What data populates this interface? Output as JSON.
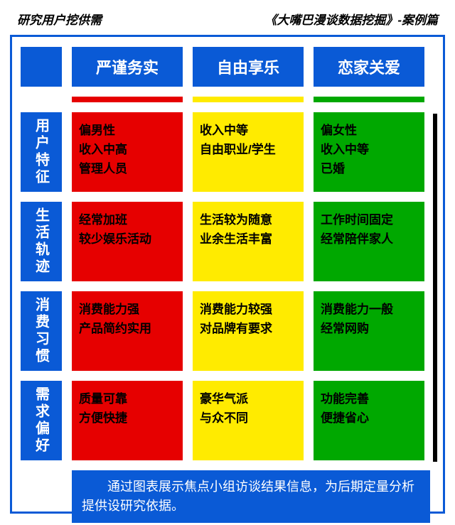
{
  "header": {
    "left": "研究用户挖供需",
    "right": "《大嘴巴漫谈数据挖掘》-案例篇"
  },
  "colors": {
    "blue": "#0a5ad6",
    "red": "#e60000",
    "yellow": "#ffeb00",
    "green": "#00a800",
    "black": "#000000",
    "white": "#ffffff"
  },
  "columns": [
    {
      "label": "严谨务实",
      "color": "#e60000"
    },
    {
      "label": "自由享乐",
      "color": "#ffeb00"
    },
    {
      "label": "恋家关爱",
      "color": "#00a800"
    }
  ],
  "rows": [
    {
      "label": "用户特征",
      "cells": [
        [
          "偏男性",
          "收入中高",
          "管理人员"
        ],
        [
          "收入中等",
          "自由职业/学生"
        ],
        [
          "偏女性",
          "收入中等",
          "已婚"
        ]
      ]
    },
    {
      "label": "生活轨迹",
      "cells": [
        [
          "经常加班",
          "较少娱乐活动"
        ],
        [
          "生活较为随意",
          "业余生活丰富"
        ],
        [
          "工作时间固定",
          "经常陪伴家人"
        ]
      ]
    },
    {
      "label": "消费习惯",
      "cells": [
        [
          "消费能力强",
          "产品简约实用"
        ],
        [
          "消费能力较强",
          "对品牌有要求"
        ],
        [
          "消费能力一般",
          "经常网购"
        ]
      ]
    },
    {
      "label": "需求偏好",
      "cells": [
        [
          "质量可靠",
          "方便快捷"
        ],
        [
          "豪华气派",
          "与众不同"
        ],
        [
          "功能完善",
          "便捷省心"
        ]
      ]
    }
  ],
  "footer": "通过图表展示焦点小组访谈结果信息，为后期定量分析提供设研究依据。"
}
